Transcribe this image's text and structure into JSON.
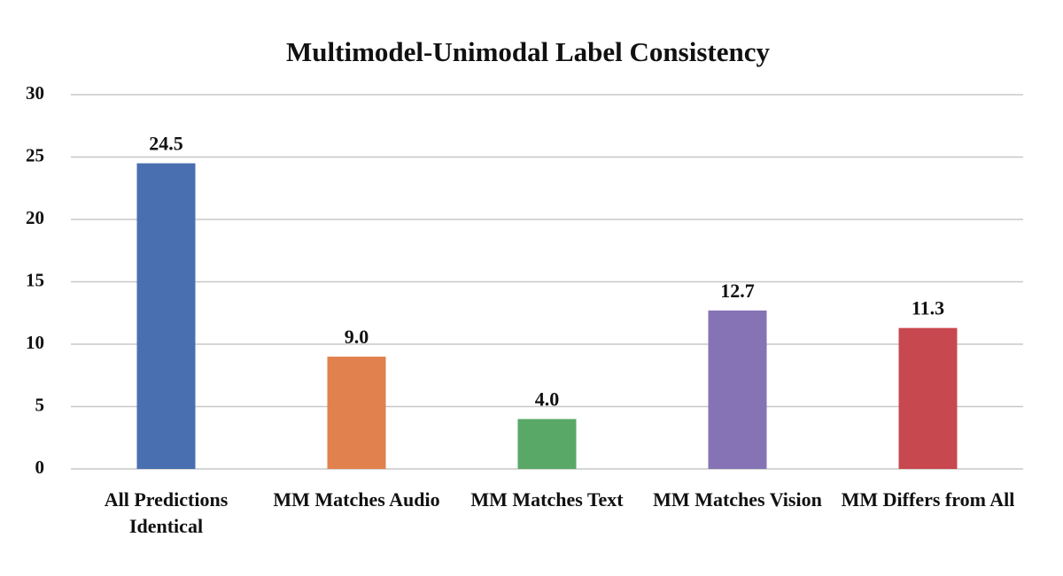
{
  "chart_data": {
    "type": "bar",
    "title": "Multimodel-Unimodal Label Consistency",
    "categories": [
      "All Predictions Identical",
      "MM Matches Audio",
      "MM Matches Text",
      "MM Matches Vision",
      "MM Differs from All"
    ],
    "values": [
      24.5,
      9,
      4,
      12.7,
      11.3
    ],
    "value_labels": [
      "24.5",
      "9.0",
      "4.0",
      "12.7",
      "11.3"
    ],
    "colors": [
      "#4a6fb0",
      "#e0814e",
      "#5aa867",
      "#8573b5",
      "#c8484f"
    ],
    "ylim": [
      0,
      30
    ],
    "yticks": [
      0,
      5,
      10,
      15,
      20,
      25,
      30
    ],
    "grid": true
  }
}
